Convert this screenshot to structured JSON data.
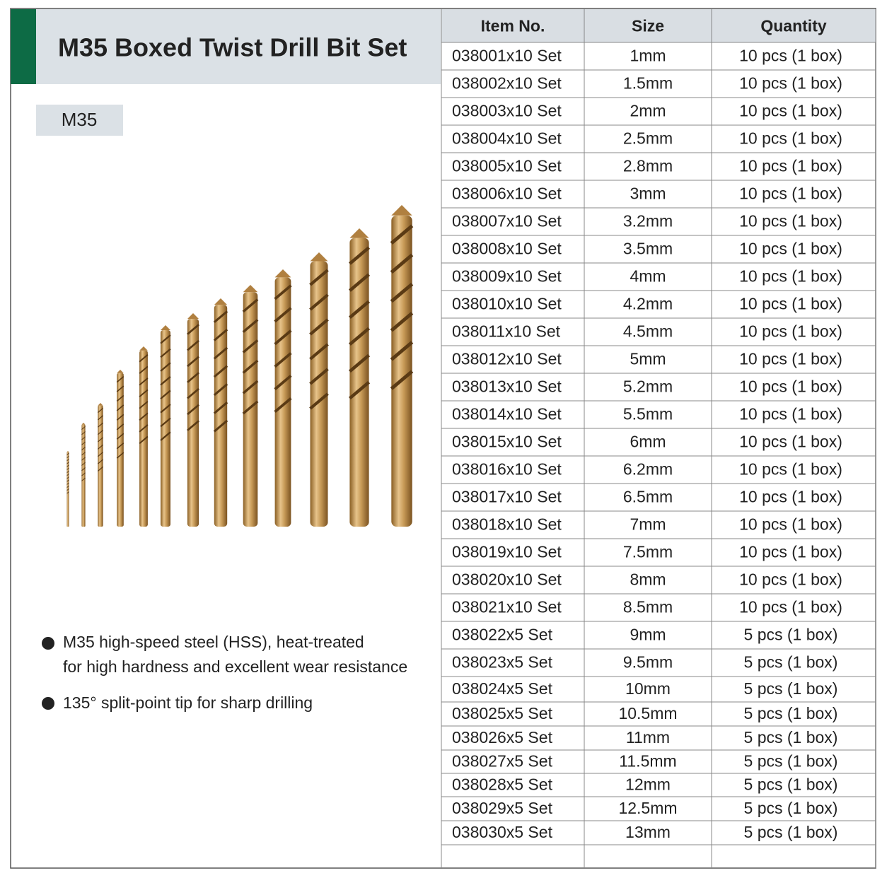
{
  "header": {
    "title": "M35 Boxed Twist Drill Bit Set",
    "tag": "M35"
  },
  "features": [
    "M35 high-speed steel (HSS), heat-treated for high hardness and excellent wear resistance",
    "135° split-point tip for sharp drilling"
  ],
  "table": {
    "columns": [
      "Item No.",
      "Size",
      "Quantity"
    ],
    "rows": [
      [
        "038001x10 Set",
        "1mm",
        "10 pcs (1 box)"
      ],
      [
        "038002x10 Set",
        "1.5mm",
        "10 pcs (1 box)"
      ],
      [
        "038003x10 Set",
        "2mm",
        "10 pcs (1 box)"
      ],
      [
        "038004x10 Set",
        "2.5mm",
        "10 pcs (1 box)"
      ],
      [
        "038005x10 Set",
        "2.8mm",
        "10 pcs (1 box)"
      ],
      [
        "038006x10 Set",
        "3mm",
        "10 pcs (1 box)"
      ],
      [
        "038007x10 Set",
        "3.2mm",
        "10 pcs (1 box)"
      ],
      [
        "038008x10 Set",
        "3.5mm",
        "10 pcs (1 box)"
      ],
      [
        "038009x10 Set",
        "4mm",
        "10 pcs (1 box)"
      ],
      [
        "038010x10 Set",
        "4.2mm",
        "10 pcs (1 box)"
      ],
      [
        "038011x10 Set",
        "4.5mm",
        "10 pcs (1 box)"
      ],
      [
        "038012x10 Set",
        "5mm",
        "10 pcs (1 box)"
      ],
      [
        "038013x10 Set",
        "5.2mm",
        "10 pcs (1 box)"
      ],
      [
        "038014x10 Set",
        "5.5mm",
        "10 pcs (1 box)"
      ],
      [
        "038015x10 Set",
        "6mm",
        "10 pcs (1 box)"
      ],
      [
        "038016x10 Set",
        "6.2mm",
        "10 pcs (1 box)"
      ],
      [
        "038017x10 Set",
        "6.5mm",
        "10 pcs (1 box)"
      ],
      [
        "038018x10 Set",
        "7mm",
        "10 pcs (1 box)"
      ],
      [
        "038019x10 Set",
        "7.5mm",
        "10 pcs (1 box)"
      ],
      [
        "038020x10 Set",
        "8mm",
        "10 pcs (1 box)"
      ],
      [
        "038021x10 Set",
        "8.5mm",
        "10 pcs (1 box)"
      ],
      [
        "038022x5 Set",
        "9mm",
        "5 pcs (1 box)"
      ],
      [
        "038023x5 Set",
        "9.5mm",
        "5 pcs (1 box)"
      ],
      [
        "038024x5 Set",
        "10mm",
        "5 pcs (1 box)"
      ],
      [
        "038025x5 Set",
        "10.5mm",
        "5 pcs (1 box)"
      ],
      [
        "038026x5 Set",
        "11mm",
        "5 pcs (1 box)"
      ],
      [
        "038027x5 Set",
        "11.5mm",
        "5 pcs (1 box)"
      ],
      [
        "038028x5 Set",
        "12mm",
        "5 pcs (1 box)"
      ],
      [
        "038029x5 Set",
        "12.5mm",
        "5 pcs (1 box)"
      ],
      [
        "038030x5 Set",
        "13mm",
        "5 pcs (1 box)"
      ]
    ]
  }
}
